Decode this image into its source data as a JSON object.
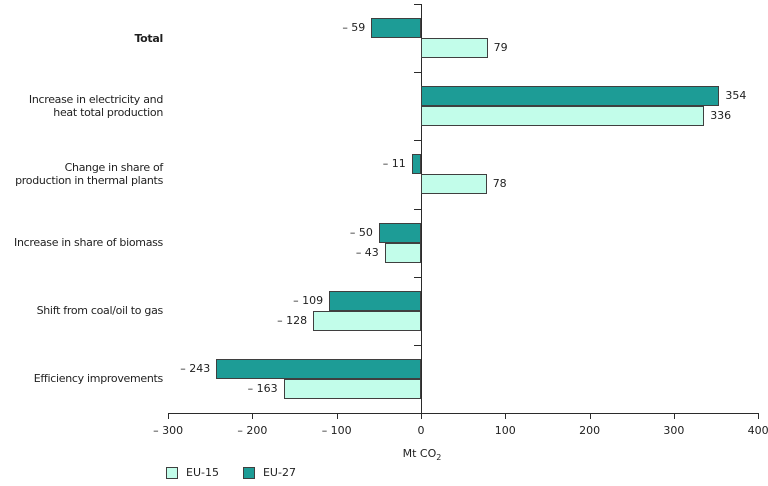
{
  "chart_data": {
    "type": "bar",
    "orientation": "horizontal",
    "title": "",
    "grid": "off",
    "legend_position": "bottom-left",
    "categories": [
      {
        "lines": [
          "Total"
        ],
        "bold": true
      },
      {
        "lines": [
          "Increase in electricity and",
          "heat total production"
        ],
        "bold": false
      },
      {
        "lines": [
          "Change in share of",
          "production in thermal plants"
        ],
        "bold": false
      },
      {
        "lines": [
          "Increase in share of biomass"
        ],
        "bold": false
      },
      {
        "lines": [
          "Shift from coal/oil to gas"
        ],
        "bold": false
      },
      {
        "lines": [
          "Efficiency improvements"
        ],
        "bold": false
      }
    ],
    "series": [
      {
        "name": "EU-27",
        "color": "#1d9c96",
        "values": [
          -59,
          354,
          -11,
          -50,
          -109,
          -243
        ],
        "labels": [
          "– 59",
          "354",
          "– 11",
          "– 50",
          "– 109",
          "– 243"
        ]
      },
      {
        "name": "EU-15",
        "color": "#c2fdea",
        "values": [
          79,
          336,
          78,
          -43,
          -128,
          -163
        ],
        "labels": [
          "79",
          "336",
          "78",
          "– 43",
          "– 128",
          "– 163"
        ]
      }
    ],
    "xlim": [
      -300,
      400
    ],
    "x_ticks": [
      -300,
      -200,
      -100,
      0,
      100,
      200,
      300,
      400
    ],
    "x_tick_labels": [
      "– 300",
      "– 200",
      "– 100",
      "0",
      "100",
      "200",
      "300",
      "400"
    ],
    "xlabel": {
      "text": "Mt CO",
      "sub": "2"
    },
    "legend": [
      {
        "label": "EU-15",
        "color": "#c2fdea"
      },
      {
        "label": "EU-27",
        "color": "#1d9c96"
      }
    ]
  }
}
